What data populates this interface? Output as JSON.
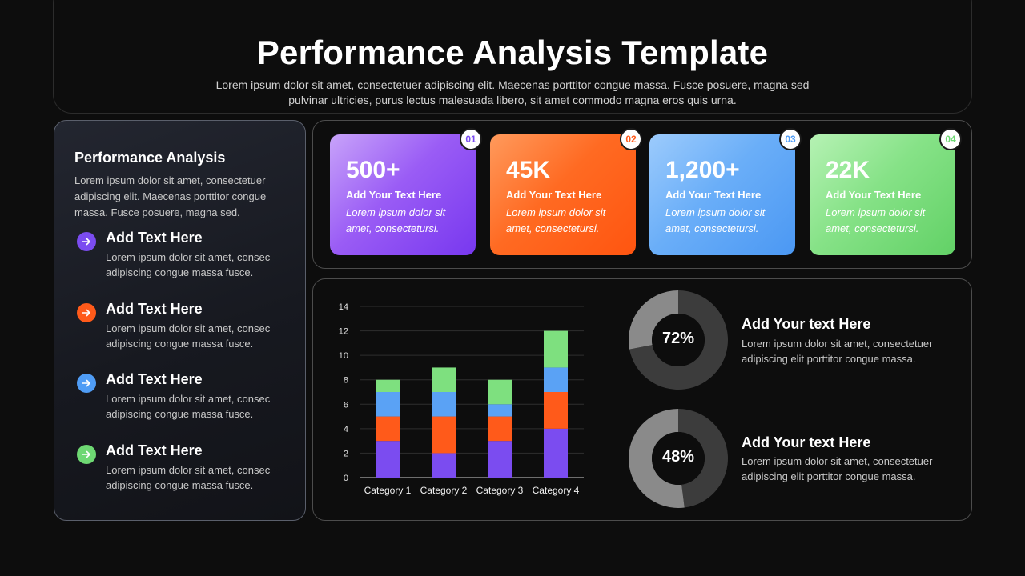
{
  "header": {
    "title": "Performance Analysis Template",
    "subtitle": "Lorem ipsum dolor sit amet, consectetuer adipiscing elit. Maecenas porttitor congue massa. Fusce posuere, magna sed pulvinar ultricies, purus lectus malesuada libero, sit amet commodo magna eros quis urna."
  },
  "left_panel": {
    "title": "Performance Analysis",
    "description": "Lorem ipsum dolor sit amet, consectetuer adipiscing elit. Maecenas porttitor congue massa. Fusce posuere, magna sed.",
    "items": [
      {
        "title": "Add Text Here",
        "description": "Lorem ipsum dolor sit amet, consec adipiscing congue massa fusce.",
        "icon": "arrow-right-icon",
        "color": "#7b4cf0"
      },
      {
        "title": "Add Text Here",
        "description": "Lorem ipsum dolor sit amet, consec adipiscing congue massa fusce.",
        "icon": "arrow-right-icon",
        "color": "#ff5a1a"
      },
      {
        "title": "Add Text Here",
        "description": "Lorem ipsum dolor sit amet, consec adipiscing congue massa fusce.",
        "icon": "arrow-right-icon",
        "color": "#4f9cf5"
      },
      {
        "title": "Add Text Here",
        "description": "Lorem ipsum dolor sit amet, consec adipiscing congue massa fusce.",
        "icon": "arrow-right-icon",
        "color": "#6ed873"
      }
    ]
  },
  "stats": [
    {
      "badge": "01",
      "value": "500+",
      "label": "Add Your Text Here",
      "description": "Lorem ipsum dolor sit amet, consectetursi.",
      "color_from": "#b78cf7",
      "color_to": "#7b3df0",
      "badge_color": "#7b4cf0"
    },
    {
      "badge": "02",
      "value": "45K",
      "label": "Add Your Text Here",
      "description": "Lorem ipsum dolor sit amet, consectetursi.",
      "color_from": "#ff8a4a",
      "color_to": "#ff5a12",
      "badge_color": "#ff5a1a"
    },
    {
      "badge": "03",
      "value": "1,200+",
      "label": "Add Your Text Here",
      "description": "Lorem ipsum dolor sit amet, consectetursi.",
      "color_from": "#8cc2fb",
      "color_to": "#4f9cf5",
      "badge_color": "#4f9cf5"
    },
    {
      "badge": "04",
      "value": "22K",
      "label": "Add Your Text Here",
      "description": "Lorem ipsum dolor sit amet, consectetursi.",
      "color_from": "#a6eea5",
      "color_to": "#66d46a",
      "badge_color": "#6ed873"
    }
  ],
  "chart_data": {
    "type": "bar",
    "stacked": true,
    "categories": [
      "Category 1",
      "Category 2",
      "Category 3",
      "Category 4"
    ],
    "series": [
      {
        "values": [
          3,
          2,
          3,
          4
        ],
        "color": "#7b4cf0"
      },
      {
        "values": [
          2,
          3,
          2,
          3
        ],
        "color": "#ff5a1a"
      },
      {
        "values": [
          2,
          2,
          1,
          2
        ],
        "color": "#5aa2f5"
      },
      {
        "values": [
          1,
          2,
          2,
          3
        ],
        "color": "#7ee07f"
      }
    ],
    "yticks": [
      0,
      2,
      4,
      6,
      8,
      10,
      12,
      14
    ],
    "ylim": [
      0,
      14
    ],
    "grid": true,
    "legend": "none"
  },
  "percent_items": [
    {
      "value": 72,
      "label": "72%",
      "title": "Add Your text Here",
      "description": "Lorem ipsum dolor sit amet, consectetuer adipiscing elit porttitor congue massa.",
      "color_main": "#3c3c3c",
      "color_rest": "#8a8a8a"
    },
    {
      "value": 48,
      "label": "48%",
      "title": "Add Your text Here",
      "description": "Lorem ipsum dolor sit amet, consectetuer adipiscing elit porttitor congue massa.",
      "color_main": "#3c3c3c",
      "color_rest": "#8a8a8a"
    }
  ]
}
